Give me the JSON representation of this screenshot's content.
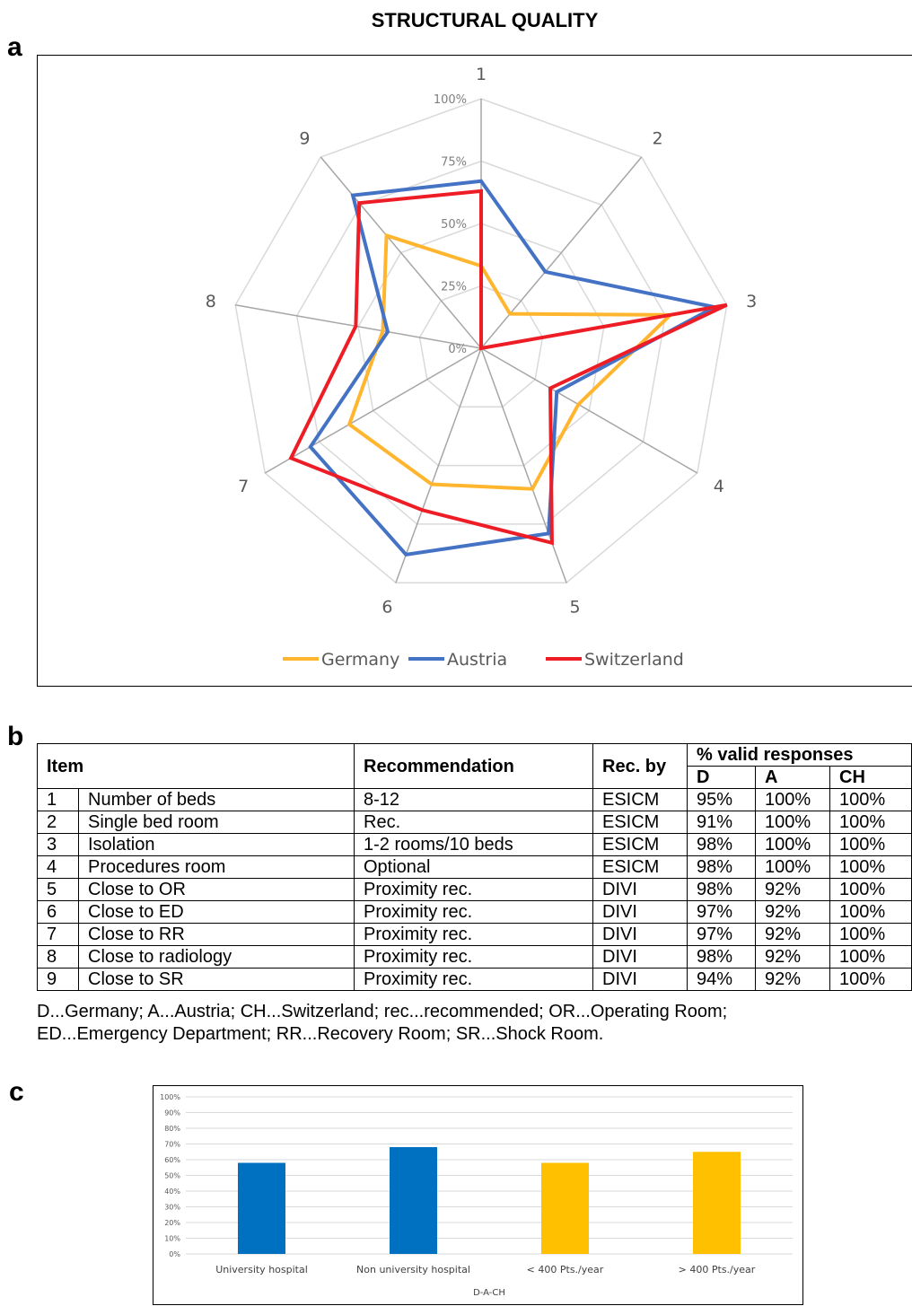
{
  "title": "STRUCTURAL QUALITY",
  "panel_letters": [
    "a",
    "b",
    "c"
  ],
  "chart_data": [
    {
      "type": "radar",
      "categories": [
        "1",
        "2",
        "3",
        "4",
        "5",
        "6",
        "7",
        "8",
        "9"
      ],
      "tick_labels": [
        "0%",
        "25%",
        "50%",
        "75%",
        "100%"
      ],
      "range": [
        0,
        100
      ],
      "series": [
        {
          "name": "Germany",
          "color": "#FFB62E",
          "values": [
            33,
            18,
            77,
            45,
            60,
            58,
            61,
            40,
            59
          ]
        },
        {
          "name": "Austria",
          "color": "#4472C4",
          "values": [
            67,
            40,
            95,
            35,
            79,
            88,
            79,
            38,
            80
          ]
        },
        {
          "name": "Switzerland",
          "color": "#EE1C25",
          "values": [
            63,
            0,
            100,
            32,
            83,
            69,
            88,
            51,
            76
          ]
        }
      ],
      "legend_position": "bottom"
    },
    {
      "type": "bar",
      "categories": [
        "University hospital",
        "Non university hospital",
        "< 400 Pts./year",
        "> 400 Pts./year"
      ],
      "values": [
        58,
        68,
        58,
        65
      ],
      "colors": [
        "#0070C0",
        "#0070C0",
        "#FFC000",
        "#FFC000"
      ],
      "xlabel": "D-A-CH",
      "ylim": [
        0,
        100
      ],
      "yticks": [
        "0%",
        "10%",
        "20%",
        "30%",
        "40%",
        "50%",
        "60%",
        "70%",
        "80%",
        "90%",
        "100%"
      ],
      "grid": true
    }
  ],
  "table": {
    "headers": {
      "item": "Item",
      "recommendation": "Recommendation",
      "rec_by": "Rec. by",
      "valid": "% valid responses",
      "d": "D",
      "a": "A",
      "ch": "CH"
    },
    "rows": [
      {
        "num": "1",
        "item": "Number of beds",
        "rec": "8-12",
        "by": "ESICM",
        "d": "95%",
        "a": "100%",
        "ch": "100%"
      },
      {
        "num": "2",
        "item": "Single bed room",
        "rec": "Rec.",
        "by": "ESICM",
        "d": "91%",
        "a": "100%",
        "ch": "100%"
      },
      {
        "num": "3",
        "item": "Isolation",
        "rec": "1-2 rooms/10 beds",
        "by": "ESICM",
        "d": "98%",
        "a": "100%",
        "ch": "100%"
      },
      {
        "num": "4",
        "item": "Procedures room",
        "rec": "Optional",
        "by": "ESICM",
        "d": "98%",
        "a": "100%",
        "ch": "100%"
      },
      {
        "num": "5",
        "item": "Close to OR",
        "rec": "Proximity rec.",
        "by": "DIVI",
        "d": "98%",
        "a": "92%",
        "ch": "100%"
      },
      {
        "num": "6",
        "item": "Close to ED",
        "rec": "Proximity rec.",
        "by": "DIVI",
        "d": "97%",
        "a": "92%",
        "ch": "100%"
      },
      {
        "num": "7",
        "item": "Close to RR",
        "rec": "Proximity rec.",
        "by": "DIVI",
        "d": "97%",
        "a": "92%",
        "ch": "100%"
      },
      {
        "num": "8",
        "item": "Close to radiology",
        "rec": "Proximity rec.",
        "by": "DIVI",
        "d": "98%",
        "a": "92%",
        "ch": "100%"
      },
      {
        "num": "9",
        "item": "Close to SR",
        "rec": "Proximity rec.",
        "by": "DIVI",
        "d": "94%",
        "a": "92%",
        "ch": "100%"
      }
    ],
    "footnote_lines": [
      "D...Germany; A...Austria; CH...Switzerland; rec...recommended; OR...Operating Room;",
      "ED...Emergency Department; RR...Recovery Room; SR...Shock Room."
    ]
  }
}
